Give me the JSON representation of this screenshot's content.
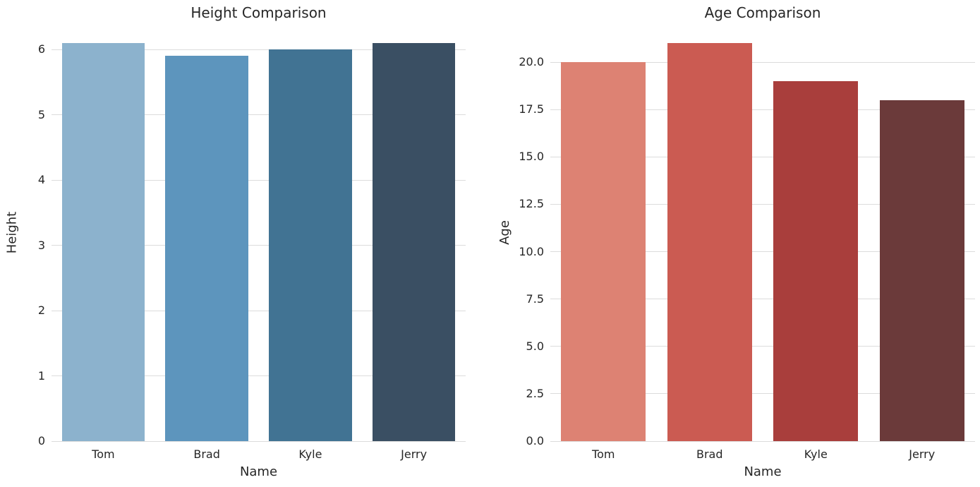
{
  "figure": {
    "background_color": "#ffffff",
    "text_color": "#262626",
    "grid_color": "#dcdcdc"
  },
  "chart_data": [
    {
      "type": "bar",
      "title": "Height Comparison",
      "xlabel": "Name",
      "ylabel": "Height",
      "categories": [
        "Tom",
        "Brad",
        "Kyle",
        "Jerry"
      ],
      "values": [
        6.1,
        5.9,
        6.0,
        6.1
      ],
      "bar_colors": [
        "#8cb2cd",
        "#5d95bd",
        "#417393",
        "#3a4f63"
      ],
      "ylim": [
        0,
        6.4
      ],
      "yticks": [
        0,
        1,
        2,
        3,
        4,
        5,
        6
      ],
      "ytick_labels": [
        "0",
        "1",
        "2",
        "3",
        "4",
        "5",
        "6"
      ],
      "grid": true,
      "legend": null
    },
    {
      "type": "bar",
      "title": "Age Comparison",
      "xlabel": "Name",
      "ylabel": "Age",
      "categories": [
        "Tom",
        "Brad",
        "Kyle",
        "Jerry"
      ],
      "values": [
        20,
        21,
        19,
        18
      ],
      "bar_colors": [
        "#dd8273",
        "#cb5b52",
        "#a93e3c",
        "#6b3a3a"
      ],
      "ylim": [
        0,
        22.05
      ],
      "yticks": [
        0,
        2.5,
        5,
        7.5,
        10,
        12.5,
        15,
        17.5,
        20
      ],
      "ytick_labels": [
        "0.0",
        "2.5",
        "5.0",
        "7.5",
        "10.0",
        "12.5",
        "15.0",
        "17.5",
        "20.0"
      ],
      "grid": true,
      "legend": null
    }
  ]
}
